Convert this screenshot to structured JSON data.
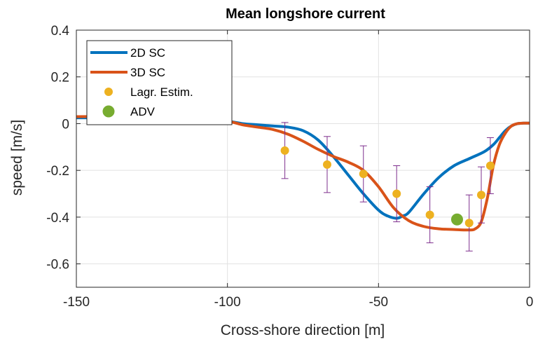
{
  "chart_data": {
    "type": "line",
    "title": "Mean longshore current",
    "xlabel": "Cross-shore direction [m]",
    "ylabel": "speed [m/s]",
    "xlim": [
      -150,
      0
    ],
    "ylim": [
      -0.7,
      0.4
    ],
    "xticks": [
      -150,
      -100,
      -50,
      0
    ],
    "xtick_labels": [
      "-150",
      "-100",
      "-50",
      "0"
    ],
    "yticks": [
      0.4,
      0.2,
      0,
      -0.2,
      -0.4,
      -0.6
    ],
    "ytick_labels": [
      "0.4",
      "0.2",
      "0",
      "-0.2",
      "-0.4",
      "-0.6"
    ],
    "grid": true,
    "legend_position": "top-left",
    "series": [
      {
        "name": "2D SC",
        "kind": "line",
        "color": "#0072BD",
        "x": [
          -150,
          -140,
          -130,
          -120,
          -110,
          -100,
          -95,
          -90,
          -85,
          -80,
          -75,
          -70,
          -65,
          -60,
          -55,
          -50,
          -47,
          -44,
          -42,
          -40,
          -35,
          -30,
          -25,
          -20,
          -15,
          -12,
          -10,
          -8,
          -6,
          -4,
          -2,
          0
        ],
        "y": [
          0.025,
          0.025,
          0.024,
          0.022,
          0.018,
          0.01,
          0.0,
          -0.005,
          -0.01,
          -0.015,
          -0.03,
          -0.07,
          -0.14,
          -0.22,
          -0.3,
          -0.37,
          -0.395,
          -0.405,
          -0.395,
          -0.38,
          -0.3,
          -0.23,
          -0.18,
          -0.15,
          -0.12,
          -0.09,
          -0.06,
          -0.03,
          -0.01,
          0.0,
          0.002,
          0.002
        ]
      },
      {
        "name": "3D SC",
        "kind": "line",
        "color": "#D95319",
        "x": [
          -150,
          -140,
          -130,
          -120,
          -110,
          -100,
          -95,
          -90,
          -85,
          -80,
          -75,
          -70,
          -65,
          -60,
          -55,
          -50,
          -45,
          -40,
          -35,
          -30,
          -25,
          -20,
          -18,
          -16,
          -14,
          -12,
          -10,
          -8,
          -6,
          -4,
          -2,
          0
        ],
        "y": [
          0.03,
          0.03,
          0.028,
          0.025,
          0.02,
          0.01,
          -0.005,
          -0.015,
          -0.025,
          -0.045,
          -0.075,
          -0.11,
          -0.14,
          -0.165,
          -0.2,
          -0.27,
          -0.36,
          -0.415,
          -0.44,
          -0.45,
          -0.453,
          -0.455,
          -0.45,
          -0.42,
          -0.32,
          -0.18,
          -0.09,
          -0.04,
          -0.01,
          0.0,
          0.002,
          0.002
        ]
      },
      {
        "name": "Lagr. Estim.",
        "kind": "scatter_errorbar",
        "color": "#EDB120",
        "errorbar_color": "#7E2F8E",
        "points": [
          {
            "x": -81,
            "y": -0.115,
            "lower": -0.235,
            "upper": 0.005
          },
          {
            "x": -67,
            "y": -0.175,
            "lower": -0.295,
            "upper": -0.055
          },
          {
            "x": -55,
            "y": -0.215,
            "lower": -0.335,
            "upper": -0.095
          },
          {
            "x": -44,
            "y": -0.3,
            "lower": -0.42,
            "upper": -0.18
          },
          {
            "x": -33,
            "y": -0.39,
            "lower": -0.51,
            "upper": -0.27
          },
          {
            "x": -20,
            "y": -0.425,
            "lower": -0.545,
            "upper": -0.305
          },
          {
            "x": -16,
            "y": -0.305,
            "lower": -0.425,
            "upper": -0.185
          },
          {
            "x": -13,
            "y": -0.18,
            "lower": -0.3,
            "upper": -0.06
          }
        ]
      },
      {
        "name": "ADV",
        "kind": "scatter",
        "color": "#77AC30",
        "points": [
          {
            "x": -24,
            "y": -0.41
          }
        ]
      }
    ]
  }
}
